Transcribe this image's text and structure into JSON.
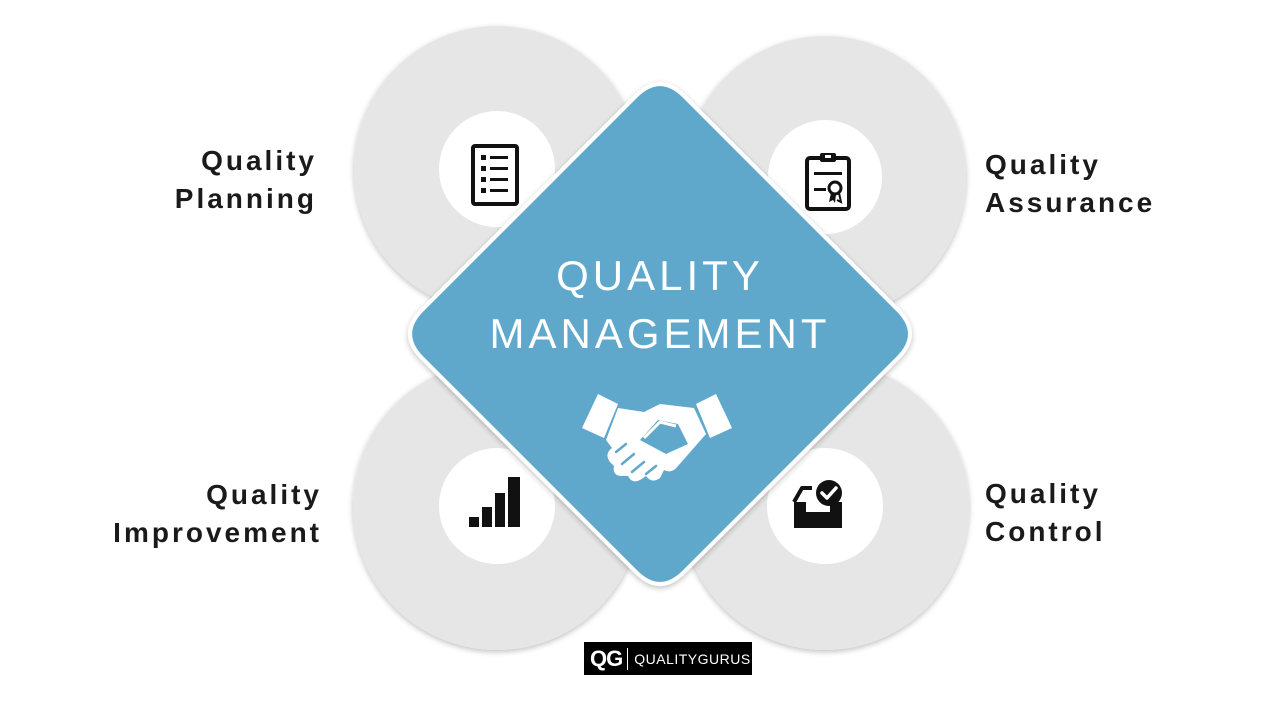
{
  "center": {
    "title_line1": "QUALITY",
    "title_line2": "MANAGEMENT",
    "icon": "handshake-icon",
    "color": "#5fa8cc"
  },
  "quadrants": {
    "planning": {
      "line1": "Quality",
      "line2": "Planning",
      "icon": "checklist-icon"
    },
    "assurance": {
      "line1": "Quality",
      "line2": "Assurance",
      "icon": "certificate-clipboard-icon"
    },
    "improvement": {
      "line1": "Quality",
      "line2": "Improvement",
      "icon": "bar-chart-icon"
    },
    "control": {
      "line1": "Quality",
      "line2": "Control",
      "icon": "inbox-check-icon"
    }
  },
  "ring_color": "#e6e6e6",
  "logo": {
    "mark": "QG",
    "text": "QUALITYGURUS"
  }
}
